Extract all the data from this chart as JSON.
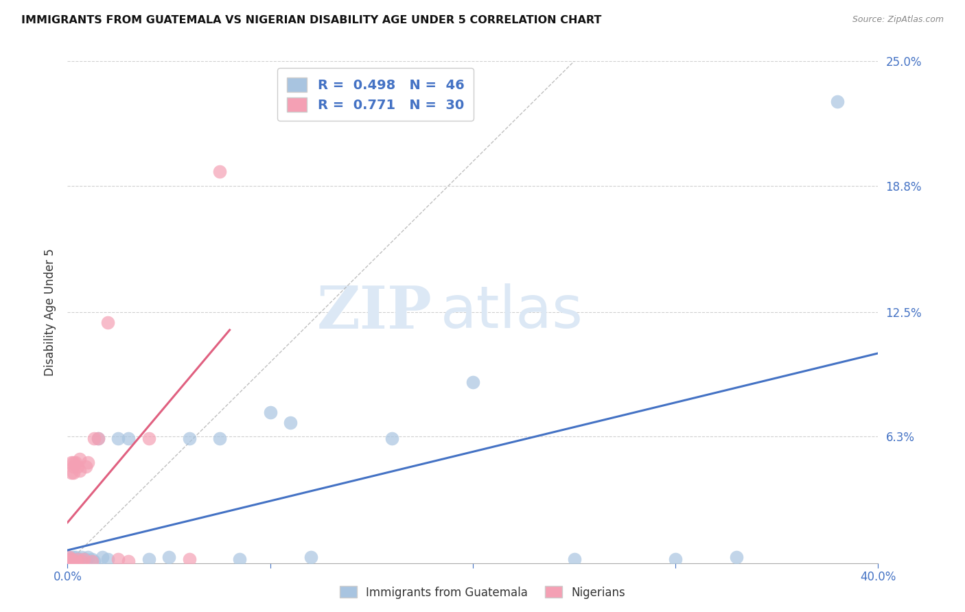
{
  "title": "IMMIGRANTS FROM GUATEMALA VS NIGERIAN DISABILITY AGE UNDER 5 CORRELATION CHART",
  "source": "Source: ZipAtlas.com",
  "ylabel": "Disability Age Under 5",
  "xlim": [
    0.0,
    0.4
  ],
  "ylim": [
    0.0,
    0.25
  ],
  "ytick_labels": [
    "25.0%",
    "18.8%",
    "12.5%",
    "6.3%"
  ],
  "ytick_positions": [
    0.25,
    0.188,
    0.125,
    0.063
  ],
  "r1_value": "0.498",
  "r1_n": "46",
  "r2_value": "0.771",
  "r2_n": "30",
  "color_guatemala": "#a8c4e0",
  "color_nigeria": "#f4a0b4",
  "color_line_guatemala": "#4472c4",
  "color_line_nigeria": "#e06080",
  "watermark_color": "#dce8f5",
  "legend_label_guatemala": "Immigrants from Guatemala",
  "legend_label_nigeria": "Nigerians",
  "guatemala_x": [
    0.001,
    0.001,
    0.001,
    0.001,
    0.002,
    0.002,
    0.002,
    0.002,
    0.003,
    0.003,
    0.003,
    0.003,
    0.004,
    0.004,
    0.004,
    0.005,
    0.005,
    0.005,
    0.006,
    0.006,
    0.007,
    0.007,
    0.008,
    0.009,
    0.01,
    0.012,
    0.013,
    0.015,
    0.017,
    0.02,
    0.025,
    0.03,
    0.04,
    0.05,
    0.06,
    0.075,
    0.085,
    0.1,
    0.11,
    0.12,
    0.16,
    0.2,
    0.25,
    0.3,
    0.33,
    0.38
  ],
  "guatemala_y": [
    0.001,
    0.002,
    0.001,
    0.003,
    0.001,
    0.002,
    0.001,
    0.002,
    0.001,
    0.002,
    0.003,
    0.001,
    0.002,
    0.001,
    0.003,
    0.001,
    0.002,
    0.001,
    0.002,
    0.001,
    0.003,
    0.002,
    0.001,
    0.002,
    0.003,
    0.002,
    0.001,
    0.062,
    0.003,
    0.002,
    0.062,
    0.062,
    0.002,
    0.003,
    0.062,
    0.062,
    0.002,
    0.075,
    0.07,
    0.003,
    0.062,
    0.09,
    0.002,
    0.002,
    0.003,
    0.23
  ],
  "nigeria_x": [
    0.001,
    0.001,
    0.001,
    0.001,
    0.001,
    0.002,
    0.002,
    0.002,
    0.003,
    0.003,
    0.003,
    0.004,
    0.004,
    0.005,
    0.005,
    0.006,
    0.006,
    0.007,
    0.008,
    0.009,
    0.01,
    0.012,
    0.013,
    0.015,
    0.02,
    0.025,
    0.03,
    0.04,
    0.06,
    0.075
  ],
  "nigeria_y": [
    0.001,
    0.002,
    0.001,
    0.003,
    0.001,
    0.045,
    0.05,
    0.002,
    0.045,
    0.05,
    0.048,
    0.001,
    0.05,
    0.002,
    0.048,
    0.046,
    0.052,
    0.001,
    0.002,
    0.048,
    0.05,
    0.001,
    0.062,
    0.062,
    0.12,
    0.002,
    0.001,
    0.062,
    0.002,
    0.195
  ]
}
